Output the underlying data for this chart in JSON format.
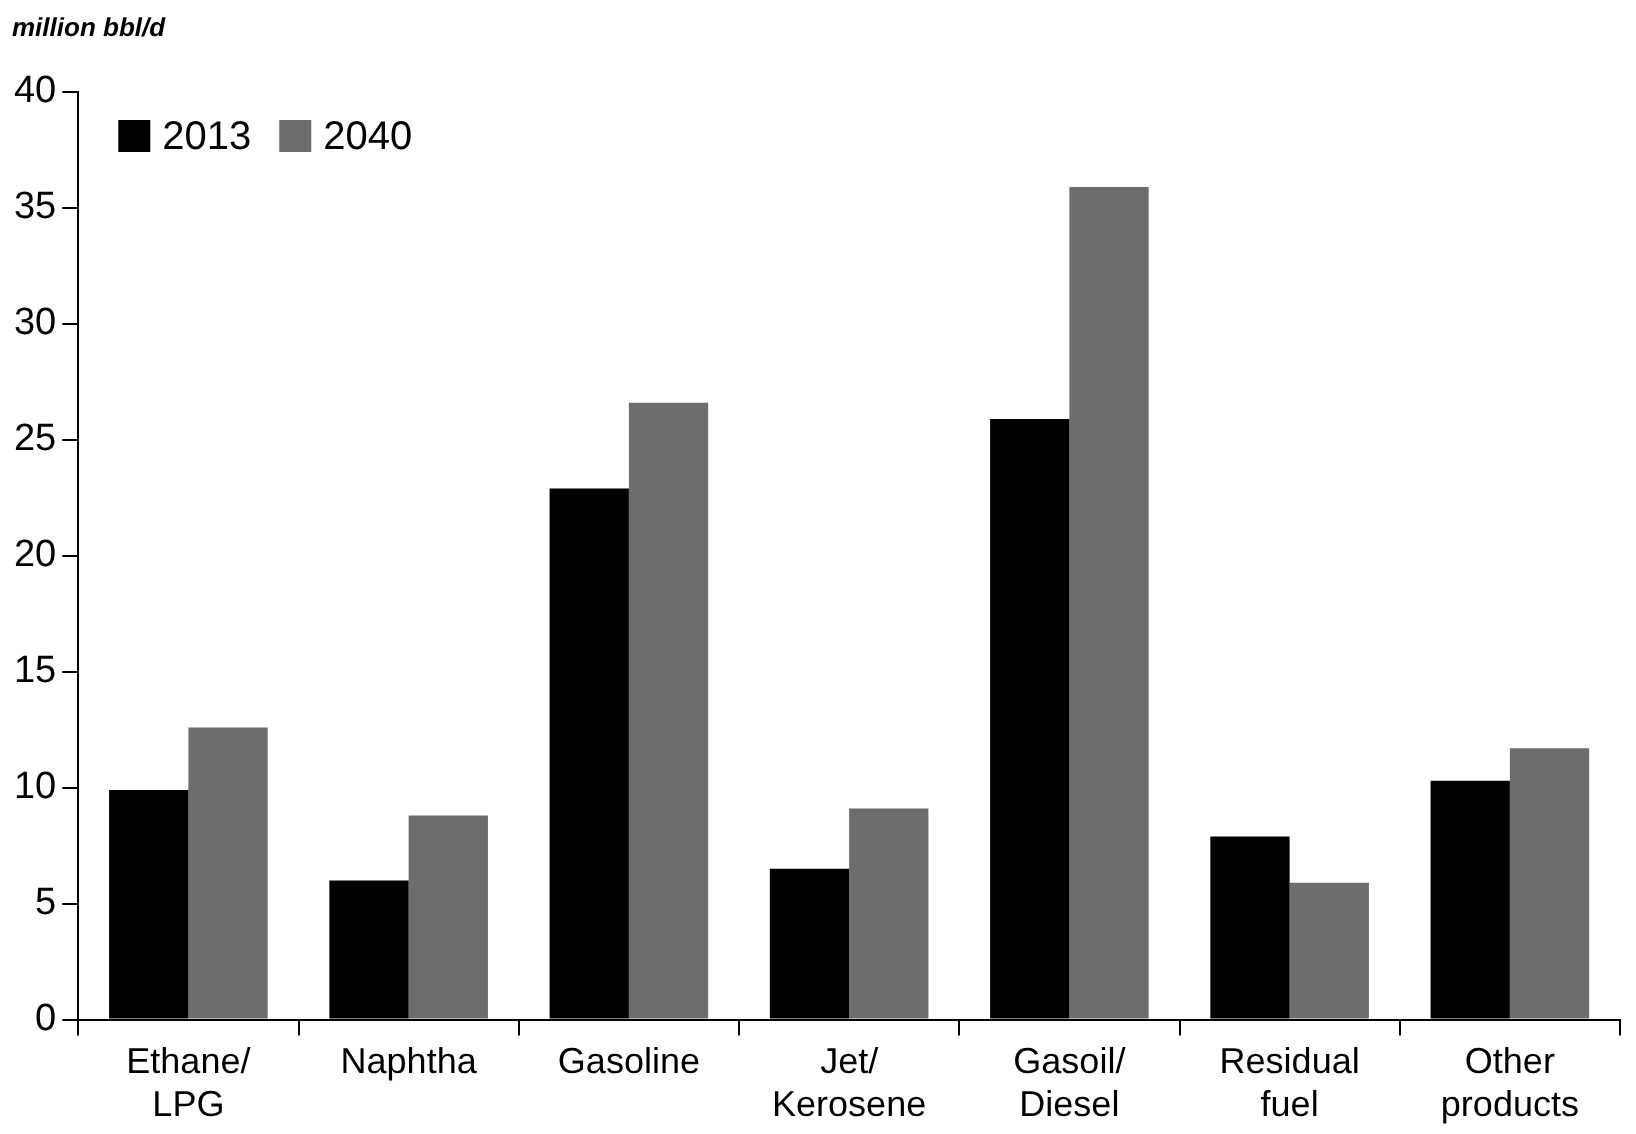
{
  "chart_data": {
    "type": "bar",
    "ylabel": "million bbl/d",
    "categories": [
      "Ethane/\nLPG",
      "Naphtha",
      "Gasoline",
      "Jet/\nKerosene",
      "Gasoil/\nDiesel",
      "Residual\nfuel",
      "Other\nproducts"
    ],
    "series": [
      {
        "name": "2013",
        "color": "#000000",
        "values": [
          9.9,
          6.0,
          22.9,
          6.5,
          25.9,
          7.9,
          10.3
        ]
      },
      {
        "name": "2040",
        "color": "#6d6d6d",
        "values": [
          12.6,
          8.8,
          26.6,
          9.1,
          35.9,
          5.9,
          11.7
        ]
      }
    ],
    "ylim": [
      0,
      40
    ],
    "yticks": [
      0,
      5,
      10,
      15,
      20,
      25,
      30,
      35,
      40
    ],
    "grid": false,
    "legend": "top left"
  }
}
